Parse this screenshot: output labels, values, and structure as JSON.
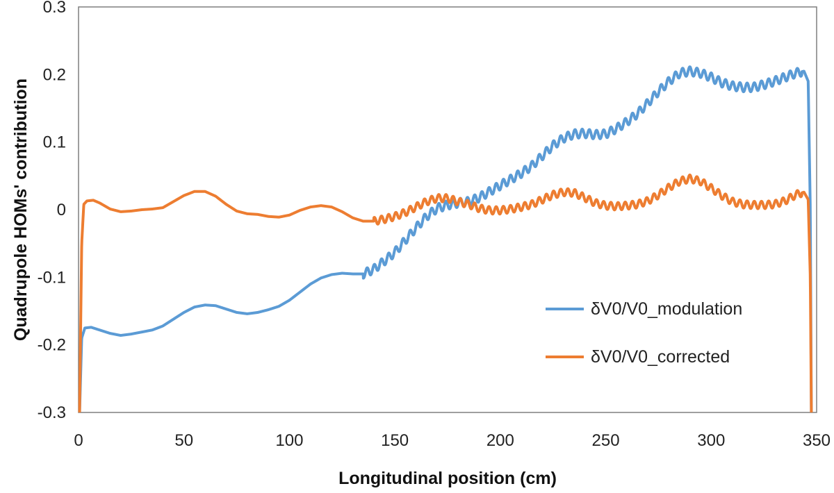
{
  "chart_data": {
    "type": "line",
    "xlabel": "Longitudinal position (cm)",
    "ylabel": "Quadrupole HOMs' contribution",
    "xlim": [
      0,
      350
    ],
    "ylim": [
      -0.3,
      0.3
    ],
    "x_ticks": [
      "0",
      "50",
      "100",
      "150",
      "200",
      "250",
      "300",
      "350"
    ],
    "y_ticks": [
      "-0.3",
      "-0.2",
      "-0.1",
      "0",
      "0.1",
      "0.2",
      "0.3"
    ],
    "grid": false,
    "legend_position": "right",
    "series": [
      {
        "name": "δV0/V0_modulation",
        "color": "#5B9BD5",
        "points": [
          [
            0.5,
            -0.3
          ],
          [
            1.5,
            -0.19
          ],
          [
            3,
            -0.175
          ],
          [
            6,
            -0.174
          ],
          [
            10,
            -0.178
          ],
          [
            15,
            -0.183
          ],
          [
            20,
            -0.186
          ],
          [
            25,
            -0.184
          ],
          [
            30,
            -0.181
          ],
          [
            35,
            -0.178
          ],
          [
            40,
            -0.172
          ],
          [
            45,
            -0.162
          ],
          [
            50,
            -0.152
          ],
          [
            55,
            -0.144
          ],
          [
            60,
            -0.141
          ],
          [
            65,
            -0.142
          ],
          [
            70,
            -0.147
          ],
          [
            75,
            -0.152
          ],
          [
            80,
            -0.154
          ],
          [
            85,
            -0.152
          ],
          [
            90,
            -0.148
          ],
          [
            95,
            -0.143
          ],
          [
            100,
            -0.134
          ],
          [
            105,
            -0.122
          ],
          [
            110,
            -0.11
          ],
          [
            115,
            -0.101
          ],
          [
            120,
            -0.096
          ],
          [
            125,
            -0.094
          ],
          [
            130,
            -0.095
          ],
          [
            135,
            -0.095
          ],
          [
            140,
            -0.088
          ],
          [
            145,
            -0.076
          ],
          [
            150,
            -0.063
          ],
          [
            155,
            -0.045
          ],
          [
            160,
            -0.027
          ],
          [
            165,
            -0.01
          ],
          [
            170,
            0.002
          ],
          [
            175,
            0.007
          ],
          [
            180,
            0.01
          ],
          [
            185,
            0.012
          ],
          [
            190,
            0.018
          ],
          [
            195,
            0.027
          ],
          [
            200,
            0.036
          ],
          [
            205,
            0.045
          ],
          [
            210,
            0.054
          ],
          [
            215,
            0.065
          ],
          [
            220,
            0.08
          ],
          [
            225,
            0.095
          ],
          [
            230,
            0.106
          ],
          [
            235,
            0.112
          ],
          [
            240,
            0.113
          ],
          [
            245,
            0.111
          ],
          [
            250,
            0.112
          ],
          [
            255,
            0.12
          ],
          [
            260,
            0.13
          ],
          [
            265,
            0.142
          ],
          [
            270,
            0.158
          ],
          [
            275,
            0.175
          ],
          [
            280,
            0.19
          ],
          [
            285,
            0.202
          ],
          [
            290,
            0.205
          ],
          [
            295,
            0.202
          ],
          [
            300,
            0.196
          ],
          [
            305,
            0.188
          ],
          [
            310,
            0.183
          ],
          [
            315,
            0.181
          ],
          [
            320,
            0.181
          ],
          [
            325,
            0.185
          ],
          [
            330,
            0.19
          ],
          [
            335,
            0.196
          ],
          [
            340,
            0.202
          ],
          [
            344,
            0.205
          ],
          [
            346,
            0.19
          ],
          [
            347,
            0.0
          ],
          [
            347.5,
            -0.3
          ]
        ]
      },
      {
        "name": "δV0/V0_corrected",
        "color": "#ED7D31",
        "points": [
          [
            0.5,
            -0.3
          ],
          [
            1.5,
            -0.05
          ],
          [
            2.5,
            0.008
          ],
          [
            4,
            0.013
          ],
          [
            7,
            0.014
          ],
          [
            10,
            0.01
          ],
          [
            15,
            0.001
          ],
          [
            20,
            -0.003
          ],
          [
            25,
            -0.002
          ],
          [
            30,
            0.0
          ],
          [
            35,
            0.001
          ],
          [
            40,
            0.003
          ],
          [
            45,
            0.012
          ],
          [
            50,
            0.021
          ],
          [
            55,
            0.027
          ],
          [
            60,
            0.027
          ],
          [
            65,
            0.02
          ],
          [
            70,
            0.008
          ],
          [
            75,
            -0.002
          ],
          [
            80,
            -0.006
          ],
          [
            85,
            -0.007
          ],
          [
            90,
            -0.01
          ],
          [
            95,
            -0.011
          ],
          [
            100,
            -0.008
          ],
          [
            105,
            -0.001
          ],
          [
            110,
            0.004
          ],
          [
            115,
            0.006
          ],
          [
            120,
            0.004
          ],
          [
            125,
            -0.003
          ],
          [
            130,
            -0.012
          ],
          [
            135,
            -0.017
          ],
          [
            140,
            -0.017
          ],
          [
            145,
            -0.014
          ],
          [
            150,
            -0.01
          ],
          [
            155,
            -0.004
          ],
          [
            160,
            0.004
          ],
          [
            165,
            0.012
          ],
          [
            170,
            0.017
          ],
          [
            175,
            0.017
          ],
          [
            180,
            0.012
          ],
          [
            185,
            0.008
          ],
          [
            190,
            0.002
          ],
          [
            195,
            -0.001
          ],
          [
            200,
            -0.001
          ],
          [
            205,
            0.001
          ],
          [
            210,
            0.004
          ],
          [
            215,
            0.008
          ],
          [
            220,
            0.015
          ],
          [
            225,
            0.022
          ],
          [
            230,
            0.026
          ],
          [
            235,
            0.025
          ],
          [
            240,
            0.018
          ],
          [
            245,
            0.01
          ],
          [
            250,
            0.006
          ],
          [
            255,
            0.005
          ],
          [
            260,
            0.006
          ],
          [
            265,
            0.008
          ],
          [
            270,
            0.013
          ],
          [
            275,
            0.022
          ],
          [
            280,
            0.033
          ],
          [
            285,
            0.042
          ],
          [
            290,
            0.046
          ],
          [
            295,
            0.042
          ],
          [
            300,
            0.032
          ],
          [
            305,
            0.021
          ],
          [
            310,
            0.012
          ],
          [
            315,
            0.008
          ],
          [
            320,
            0.007
          ],
          [
            325,
            0.007
          ],
          [
            330,
            0.008
          ],
          [
            335,
            0.013
          ],
          [
            340,
            0.022
          ],
          [
            344,
            0.026
          ],
          [
            346,
            0.015
          ],
          [
            347,
            -0.1
          ],
          [
            347.5,
            -0.3
          ]
        ]
      }
    ]
  }
}
